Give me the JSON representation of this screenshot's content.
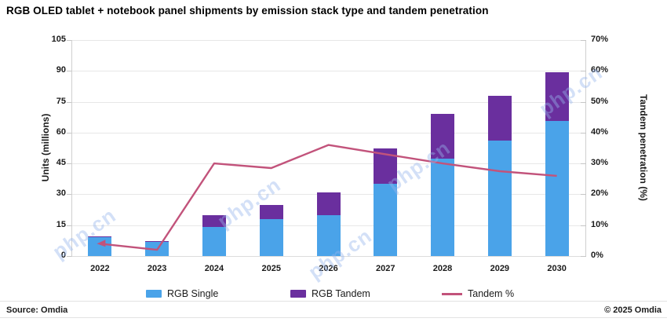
{
  "title": "RGB OLED tablet + notebook panel shipments by emission stack type and tandem penetration",
  "footer": {
    "source": "Source: Omdia",
    "copyright": "© 2025 Omdia"
  },
  "watermark": "php.cn",
  "colors": {
    "single": "#4aa3e9",
    "tandem": "#6a2f9e",
    "line": "#c2537b",
    "grid": "#e7e7e7",
    "axis": "#cfcfcf"
  },
  "chart_data": {
    "type": "combo",
    "title": "RGB OLED tablet + notebook panel shipments by emission stack type and tandem penetration",
    "categories": [
      "2022",
      "2023",
      "2024",
      "2025",
      "2026",
      "2027",
      "2028",
      "2029",
      "2030"
    ],
    "series": [
      {
        "name": "RGB Single",
        "type": "bar",
        "stack": true,
        "axis": "left",
        "values": [
          9,
          7,
          14,
          18,
          20,
          35,
          47.5,
          56,
          65.5
        ]
      },
      {
        "name": "RGB Tandem",
        "type": "bar",
        "stack": true,
        "axis": "left",
        "values": [
          0.4,
          0.2,
          6,
          7,
          11,
          17.5,
          21.5,
          22,
          24
        ]
      },
      {
        "name": "Tandem %",
        "type": "line",
        "axis": "right",
        "values": [
          4,
          2,
          30,
          28.5,
          36,
          33,
          30,
          27.5,
          26
        ]
      }
    ],
    "ylabel_left": "Units (millions)",
    "ylabel_right": "Tandem penetration (%)",
    "ylim_left": [
      0,
      105
    ],
    "ytick_step_left": 15,
    "ylim_right": [
      0,
      70
    ],
    "ytick_step_right": 10,
    "ytick_format_right": "%",
    "grid": true,
    "legend_position": "bottom"
  }
}
